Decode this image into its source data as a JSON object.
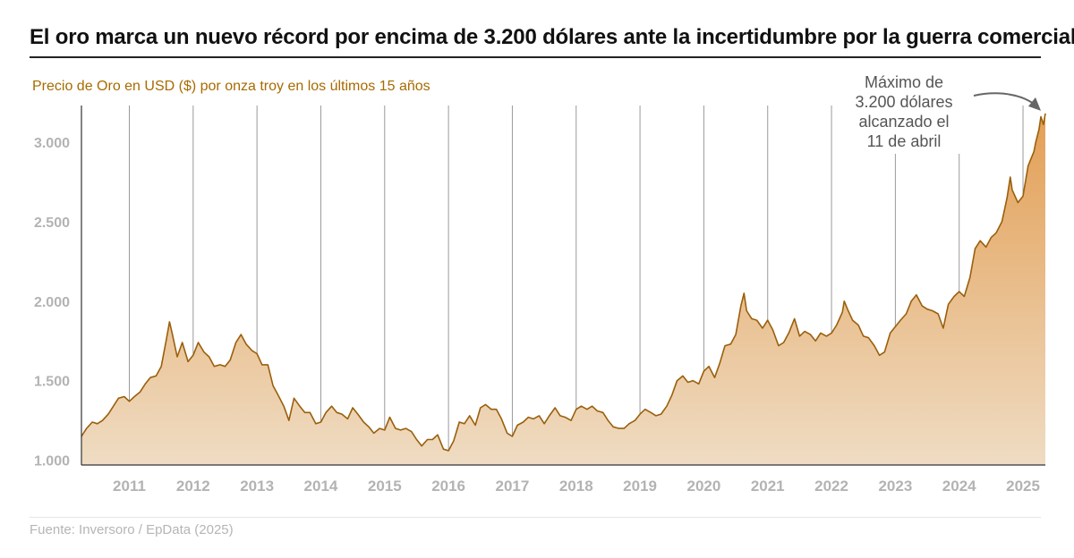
{
  "title": "El oro marca un nuevo récord por encima de 3.200 dólares ante la incertidumbre por la guerra comercial",
  "source": "Fuente: Inversoro / EpData (2025)",
  "colors": {
    "line": "#9a5f0c",
    "area_top": "#e39f55",
    "area_bottom": "#efdcc3",
    "subtitle": "#a86a00",
    "grid": "#cfcfcf",
    "axis_text": "#b3b3b3"
  },
  "chart_data": {
    "type": "area",
    "subtitle": "Precio de Oro en USD ($) por onza troy en los últimos 15 años",
    "ylim": [
      970,
      3230
    ],
    "xlim": [
      2010.25,
      2025.35
    ],
    "yticks": [
      {
        "value": 1000,
        "label": "1.000"
      },
      {
        "value": 1500,
        "label": "1.500"
      },
      {
        "value": 2000,
        "label": "2.000"
      },
      {
        "value": 2500,
        "label": "2.500"
      },
      {
        "value": 3000,
        "label": "3.000"
      }
    ],
    "xticks": [
      {
        "value": 2011,
        "label": "2011"
      },
      {
        "value": 2012,
        "label": "2012"
      },
      {
        "value": 2013,
        "label": "2013"
      },
      {
        "value": 2014,
        "label": "2014"
      },
      {
        "value": 2015,
        "label": "2015"
      },
      {
        "value": 2016,
        "label": "2016"
      },
      {
        "value": 2017,
        "label": "2017"
      },
      {
        "value": 2018,
        "label": "2018"
      },
      {
        "value": 2019,
        "label": "2019"
      },
      {
        "value": 2020,
        "label": "2020"
      },
      {
        "value": 2021,
        "label": "2021"
      },
      {
        "value": 2022,
        "label": "2022"
      },
      {
        "value": 2023,
        "label": "2023"
      },
      {
        "value": 2024,
        "label": "2024"
      },
      {
        "value": 2025,
        "label": "2025"
      }
    ],
    "grid": "vertical",
    "annotation": {
      "lines": [
        "Máximo de",
        "3.200 dólares",
        "alcanzado el",
        "11 de abril"
      ],
      "target": [
        2025.28,
        3180
      ]
    },
    "series": [
      {
        "values": [
          [
            2010.25,
            1150
          ],
          [
            2010.33,
            1200
          ],
          [
            2010.42,
            1240
          ],
          [
            2010.5,
            1230
          ],
          [
            2010.58,
            1250
          ],
          [
            2010.67,
            1290
          ],
          [
            2010.75,
            1340
          ],
          [
            2010.83,
            1390
          ],
          [
            2010.92,
            1400
          ],
          [
            2011.0,
            1370
          ],
          [
            2011.08,
            1400
          ],
          [
            2011.17,
            1430
          ],
          [
            2011.25,
            1480
          ],
          [
            2011.33,
            1520
          ],
          [
            2011.42,
            1530
          ],
          [
            2011.5,
            1590
          ],
          [
            2011.58,
            1760
          ],
          [
            2011.63,
            1870
          ],
          [
            2011.67,
            1800
          ],
          [
            2011.75,
            1650
          ],
          [
            2011.83,
            1740
          ],
          [
            2011.92,
            1620
          ],
          [
            2012.0,
            1660
          ],
          [
            2012.08,
            1740
          ],
          [
            2012.17,
            1680
          ],
          [
            2012.25,
            1650
          ],
          [
            2012.33,
            1590
          ],
          [
            2012.42,
            1600
          ],
          [
            2012.5,
            1590
          ],
          [
            2012.58,
            1630
          ],
          [
            2012.67,
            1740
          ],
          [
            2012.75,
            1790
          ],
          [
            2012.83,
            1730
          ],
          [
            2012.92,
            1690
          ],
          [
            2013.0,
            1670
          ],
          [
            2013.08,
            1600
          ],
          [
            2013.17,
            1600
          ],
          [
            2013.25,
            1470
          ],
          [
            2013.33,
            1410
          ],
          [
            2013.42,
            1340
          ],
          [
            2013.5,
            1250
          ],
          [
            2013.58,
            1390
          ],
          [
            2013.67,
            1340
          ],
          [
            2013.75,
            1300
          ],
          [
            2013.83,
            1300
          ],
          [
            2013.92,
            1230
          ],
          [
            2014.0,
            1240
          ],
          [
            2014.08,
            1300
          ],
          [
            2014.17,
            1340
          ],
          [
            2014.25,
            1300
          ],
          [
            2014.33,
            1290
          ],
          [
            2014.42,
            1260
          ],
          [
            2014.5,
            1330
          ],
          [
            2014.58,
            1290
          ],
          [
            2014.67,
            1240
          ],
          [
            2014.75,
            1210
          ],
          [
            2014.83,
            1170
          ],
          [
            2014.92,
            1200
          ],
          [
            2015.0,
            1190
          ],
          [
            2015.08,
            1270
          ],
          [
            2015.17,
            1200
          ],
          [
            2015.25,
            1190
          ],
          [
            2015.33,
            1200
          ],
          [
            2015.42,
            1180
          ],
          [
            2015.5,
            1130
          ],
          [
            2015.58,
            1090
          ],
          [
            2015.67,
            1130
          ],
          [
            2015.75,
            1130
          ],
          [
            2015.83,
            1160
          ],
          [
            2015.92,
            1070
          ],
          [
            2016.0,
            1060
          ],
          [
            2016.08,
            1120
          ],
          [
            2016.17,
            1240
          ],
          [
            2016.25,
            1230
          ],
          [
            2016.33,
            1280
          ],
          [
            2016.42,
            1220
          ],
          [
            2016.5,
            1330
          ],
          [
            2016.58,
            1350
          ],
          [
            2016.67,
            1320
          ],
          [
            2016.75,
            1320
          ],
          [
            2016.83,
            1260
          ],
          [
            2016.92,
            1170
          ],
          [
            2017.0,
            1150
          ],
          [
            2017.08,
            1220
          ],
          [
            2017.17,
            1240
          ],
          [
            2017.25,
            1270
          ],
          [
            2017.33,
            1260
          ],
          [
            2017.42,
            1280
          ],
          [
            2017.5,
            1230
          ],
          [
            2017.58,
            1280
          ],
          [
            2017.67,
            1330
          ],
          [
            2017.75,
            1280
          ],
          [
            2017.83,
            1270
          ],
          [
            2017.92,
            1250
          ],
          [
            2018.0,
            1320
          ],
          [
            2018.08,
            1340
          ],
          [
            2018.17,
            1320
          ],
          [
            2018.25,
            1340
          ],
          [
            2018.33,
            1310
          ],
          [
            2018.42,
            1300
          ],
          [
            2018.5,
            1250
          ],
          [
            2018.58,
            1210
          ],
          [
            2018.67,
            1200
          ],
          [
            2018.75,
            1200
          ],
          [
            2018.83,
            1230
          ],
          [
            2018.92,
            1250
          ],
          [
            2019.0,
            1290
          ],
          [
            2019.08,
            1320
          ],
          [
            2019.17,
            1300
          ],
          [
            2019.25,
            1280
          ],
          [
            2019.33,
            1290
          ],
          [
            2019.42,
            1340
          ],
          [
            2019.5,
            1410
          ],
          [
            2019.58,
            1500
          ],
          [
            2019.67,
            1530
          ],
          [
            2019.75,
            1490
          ],
          [
            2019.83,
            1500
          ],
          [
            2019.92,
            1480
          ],
          [
            2020.0,
            1560
          ],
          [
            2020.08,
            1590
          ],
          [
            2020.17,
            1520
          ],
          [
            2020.25,
            1610
          ],
          [
            2020.33,
            1720
          ],
          [
            2020.42,
            1730
          ],
          [
            2020.5,
            1790
          ],
          [
            2020.58,
            1970
          ],
          [
            2020.63,
            2050
          ],
          [
            2020.67,
            1940
          ],
          [
            2020.75,
            1890
          ],
          [
            2020.83,
            1880
          ],
          [
            2020.92,
            1830
          ],
          [
            2021.0,
            1880
          ],
          [
            2021.08,
            1820
          ],
          [
            2021.17,
            1720
          ],
          [
            2021.25,
            1740
          ],
          [
            2021.33,
            1800
          ],
          [
            2021.42,
            1890
          ],
          [
            2021.5,
            1780
          ],
          [
            2021.58,
            1810
          ],
          [
            2021.67,
            1790
          ],
          [
            2021.75,
            1750
          ],
          [
            2021.83,
            1800
          ],
          [
            2021.92,
            1780
          ],
          [
            2022.0,
            1800
          ],
          [
            2022.08,
            1850
          ],
          [
            2022.17,
            1930
          ],
          [
            2022.2,
            2000
          ],
          [
            2022.25,
            1950
          ],
          [
            2022.33,
            1880
          ],
          [
            2022.42,
            1850
          ],
          [
            2022.5,
            1780
          ],
          [
            2022.58,
            1770
          ],
          [
            2022.67,
            1720
          ],
          [
            2022.75,
            1660
          ],
          [
            2022.83,
            1680
          ],
          [
            2022.92,
            1800
          ],
          [
            2023.0,
            1840
          ],
          [
            2023.08,
            1880
          ],
          [
            2023.17,
            1920
          ],
          [
            2023.25,
            2000
          ],
          [
            2023.33,
            2040
          ],
          [
            2023.42,
            1970
          ],
          [
            2023.5,
            1950
          ],
          [
            2023.58,
            1940
          ],
          [
            2023.67,
            1920
          ],
          [
            2023.75,
            1830
          ],
          [
            2023.83,
            1980
          ],
          [
            2023.92,
            2030
          ],
          [
            2024.0,
            2060
          ],
          [
            2024.08,
            2030
          ],
          [
            2024.17,
            2150
          ],
          [
            2024.25,
            2330
          ],
          [
            2024.33,
            2380
          ],
          [
            2024.42,
            2340
          ],
          [
            2024.5,
            2400
          ],
          [
            2024.58,
            2430
          ],
          [
            2024.67,
            2500
          ],
          [
            2024.75,
            2650
          ],
          [
            2024.8,
            2780
          ],
          [
            2024.83,
            2700
          ],
          [
            2024.92,
            2620
          ],
          [
            2025.0,
            2660
          ],
          [
            2025.08,
            2850
          ],
          [
            2025.17,
            2940
          ],
          [
            2025.2,
            3000
          ],
          [
            2025.25,
            3080
          ],
          [
            2025.28,
            3160
          ],
          [
            2025.32,
            3110
          ],
          [
            2025.35,
            3180
          ]
        ]
      }
    ]
  }
}
